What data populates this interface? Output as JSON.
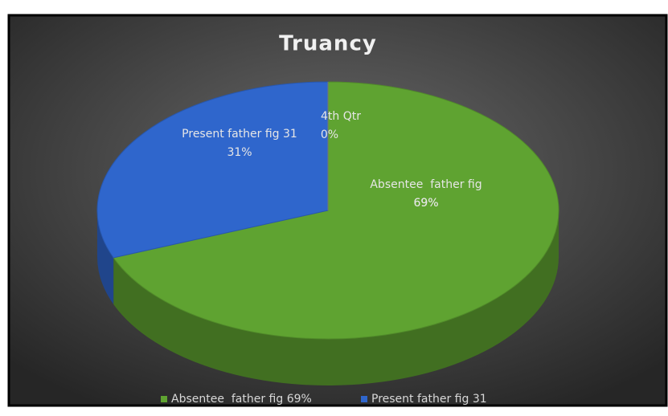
{
  "chart_data": {
    "type": "pie",
    "title": "Truancy",
    "categories": [
      "Absentee  father fig 69%",
      "Present father fig 31",
      "4th Qtr"
    ],
    "values": [
      69,
      31,
      0
    ],
    "value_labels": [
      "69%",
      "31%",
      "0%"
    ],
    "colors": [
      "#5fa331",
      "#2f66cc",
      "#8a8a8a"
    ],
    "legend": "bottom"
  }
}
